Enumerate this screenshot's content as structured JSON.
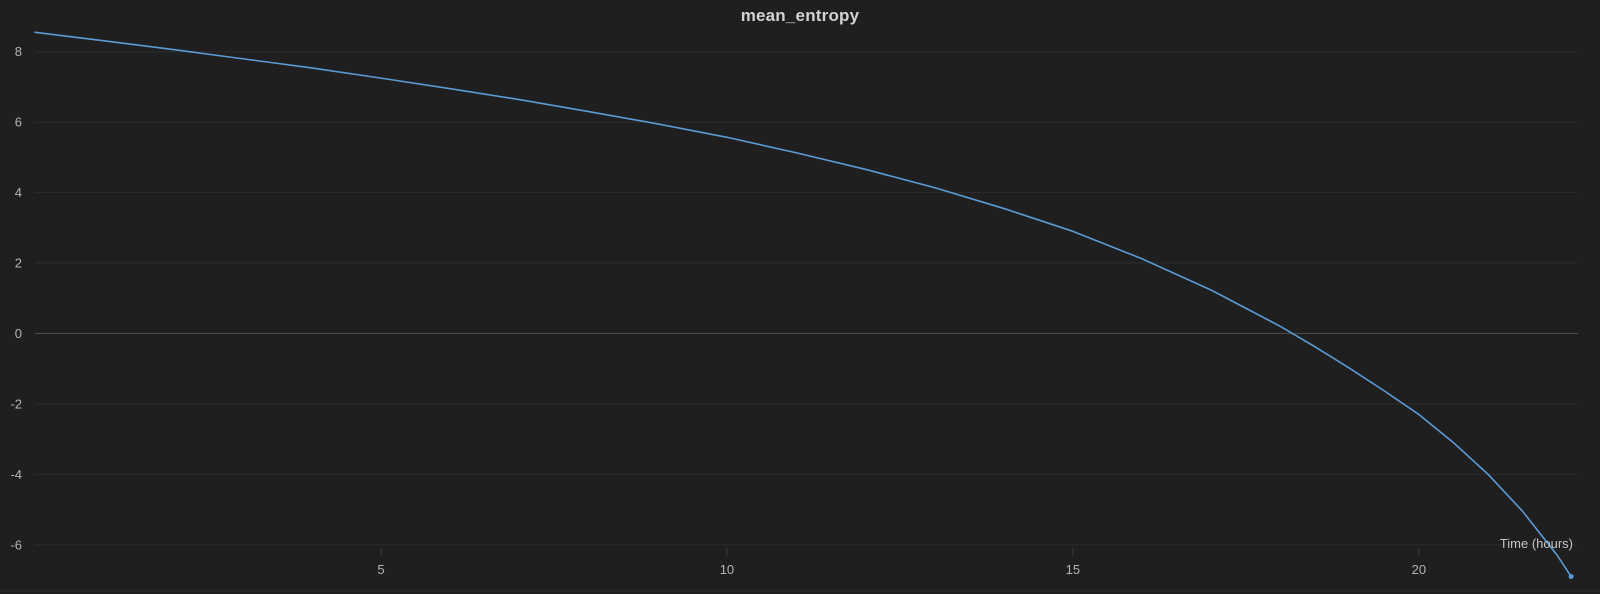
{
  "chart_data": {
    "type": "line",
    "title": "mean_entropy",
    "xlabel": "Time (hours)",
    "ylabel": "",
    "xlim": [
      0,
      22.3
    ],
    "ylim": [
      -7,
      8.9
    ],
    "xticks": [
      5,
      10,
      15,
      20
    ],
    "yticks": [
      -6,
      -4,
      -2,
      0,
      2,
      4,
      6,
      8
    ],
    "grid": true,
    "series_color": "#5b9bd5",
    "series": [
      {
        "x": [
          0,
          1,
          2,
          3,
          4,
          5,
          6,
          7,
          8,
          9,
          10,
          11,
          12,
          13,
          14,
          15,
          16,
          17,
          18,
          18.5,
          19,
          19.5,
          20,
          20.5,
          21,
          21.5,
          22,
          22.2
        ],
        "values": [
          8.55,
          8.31,
          8.06,
          7.8,
          7.54,
          7.25,
          6.95,
          6.64,
          6.3,
          5.95,
          5.57,
          5.13,
          4.66,
          4.14,
          3.55,
          2.9,
          2.12,
          1.23,
          0.2,
          -0.38,
          -0.99,
          -1.63,
          -2.3,
          -3.1,
          -4.0,
          -5.05,
          -6.3,
          -6.9
        ]
      }
    ]
  }
}
